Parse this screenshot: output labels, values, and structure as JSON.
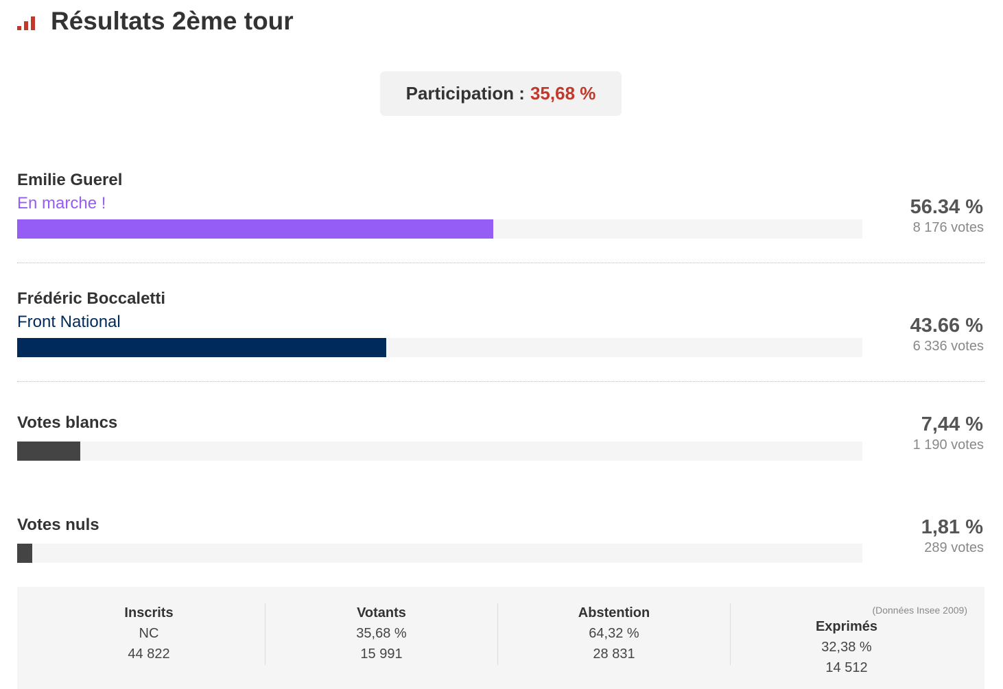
{
  "header": {
    "title": "Résultats 2ème tour"
  },
  "participation": {
    "label": "Participation :",
    "value_label": "35,68 %"
  },
  "results": [
    {
      "name": "Emilie Guerel",
      "party": "En marche !",
      "percent": 56.34,
      "percent_label": "56.34 %",
      "votes": "8 176 votes",
      "color": "#955cf6"
    },
    {
      "name": "Frédéric Boccaletti",
      "party": "Front National",
      "percent": 43.66,
      "percent_label": "43.66 %",
      "votes": "6 336 votes",
      "color": "#002a5c"
    },
    {
      "name": "Votes blancs",
      "percent": 7.44,
      "percent_label": "7,44 %",
      "votes": "1 190 votes",
      "color": "#444444"
    },
    {
      "name": "Votes nuls",
      "percent": 1.81,
      "percent_label": "1,81 %",
      "votes": "289 votes",
      "color": "#444444"
    }
  ],
  "summary": {
    "note": "(Données Insee 2009)",
    "columns": [
      {
        "title": "Inscrits",
        "lines": [
          "NC",
          "44 822"
        ]
      },
      {
        "title": "Votants",
        "lines": [
          "35,68 %",
          "15 991"
        ]
      },
      {
        "title": "Abstention",
        "lines": [
          "64,32 %",
          "28 831"
        ]
      },
      {
        "title": "Exprimés",
        "lines": [
          "32,38 %",
          "14 512"
        ]
      }
    ]
  }
}
